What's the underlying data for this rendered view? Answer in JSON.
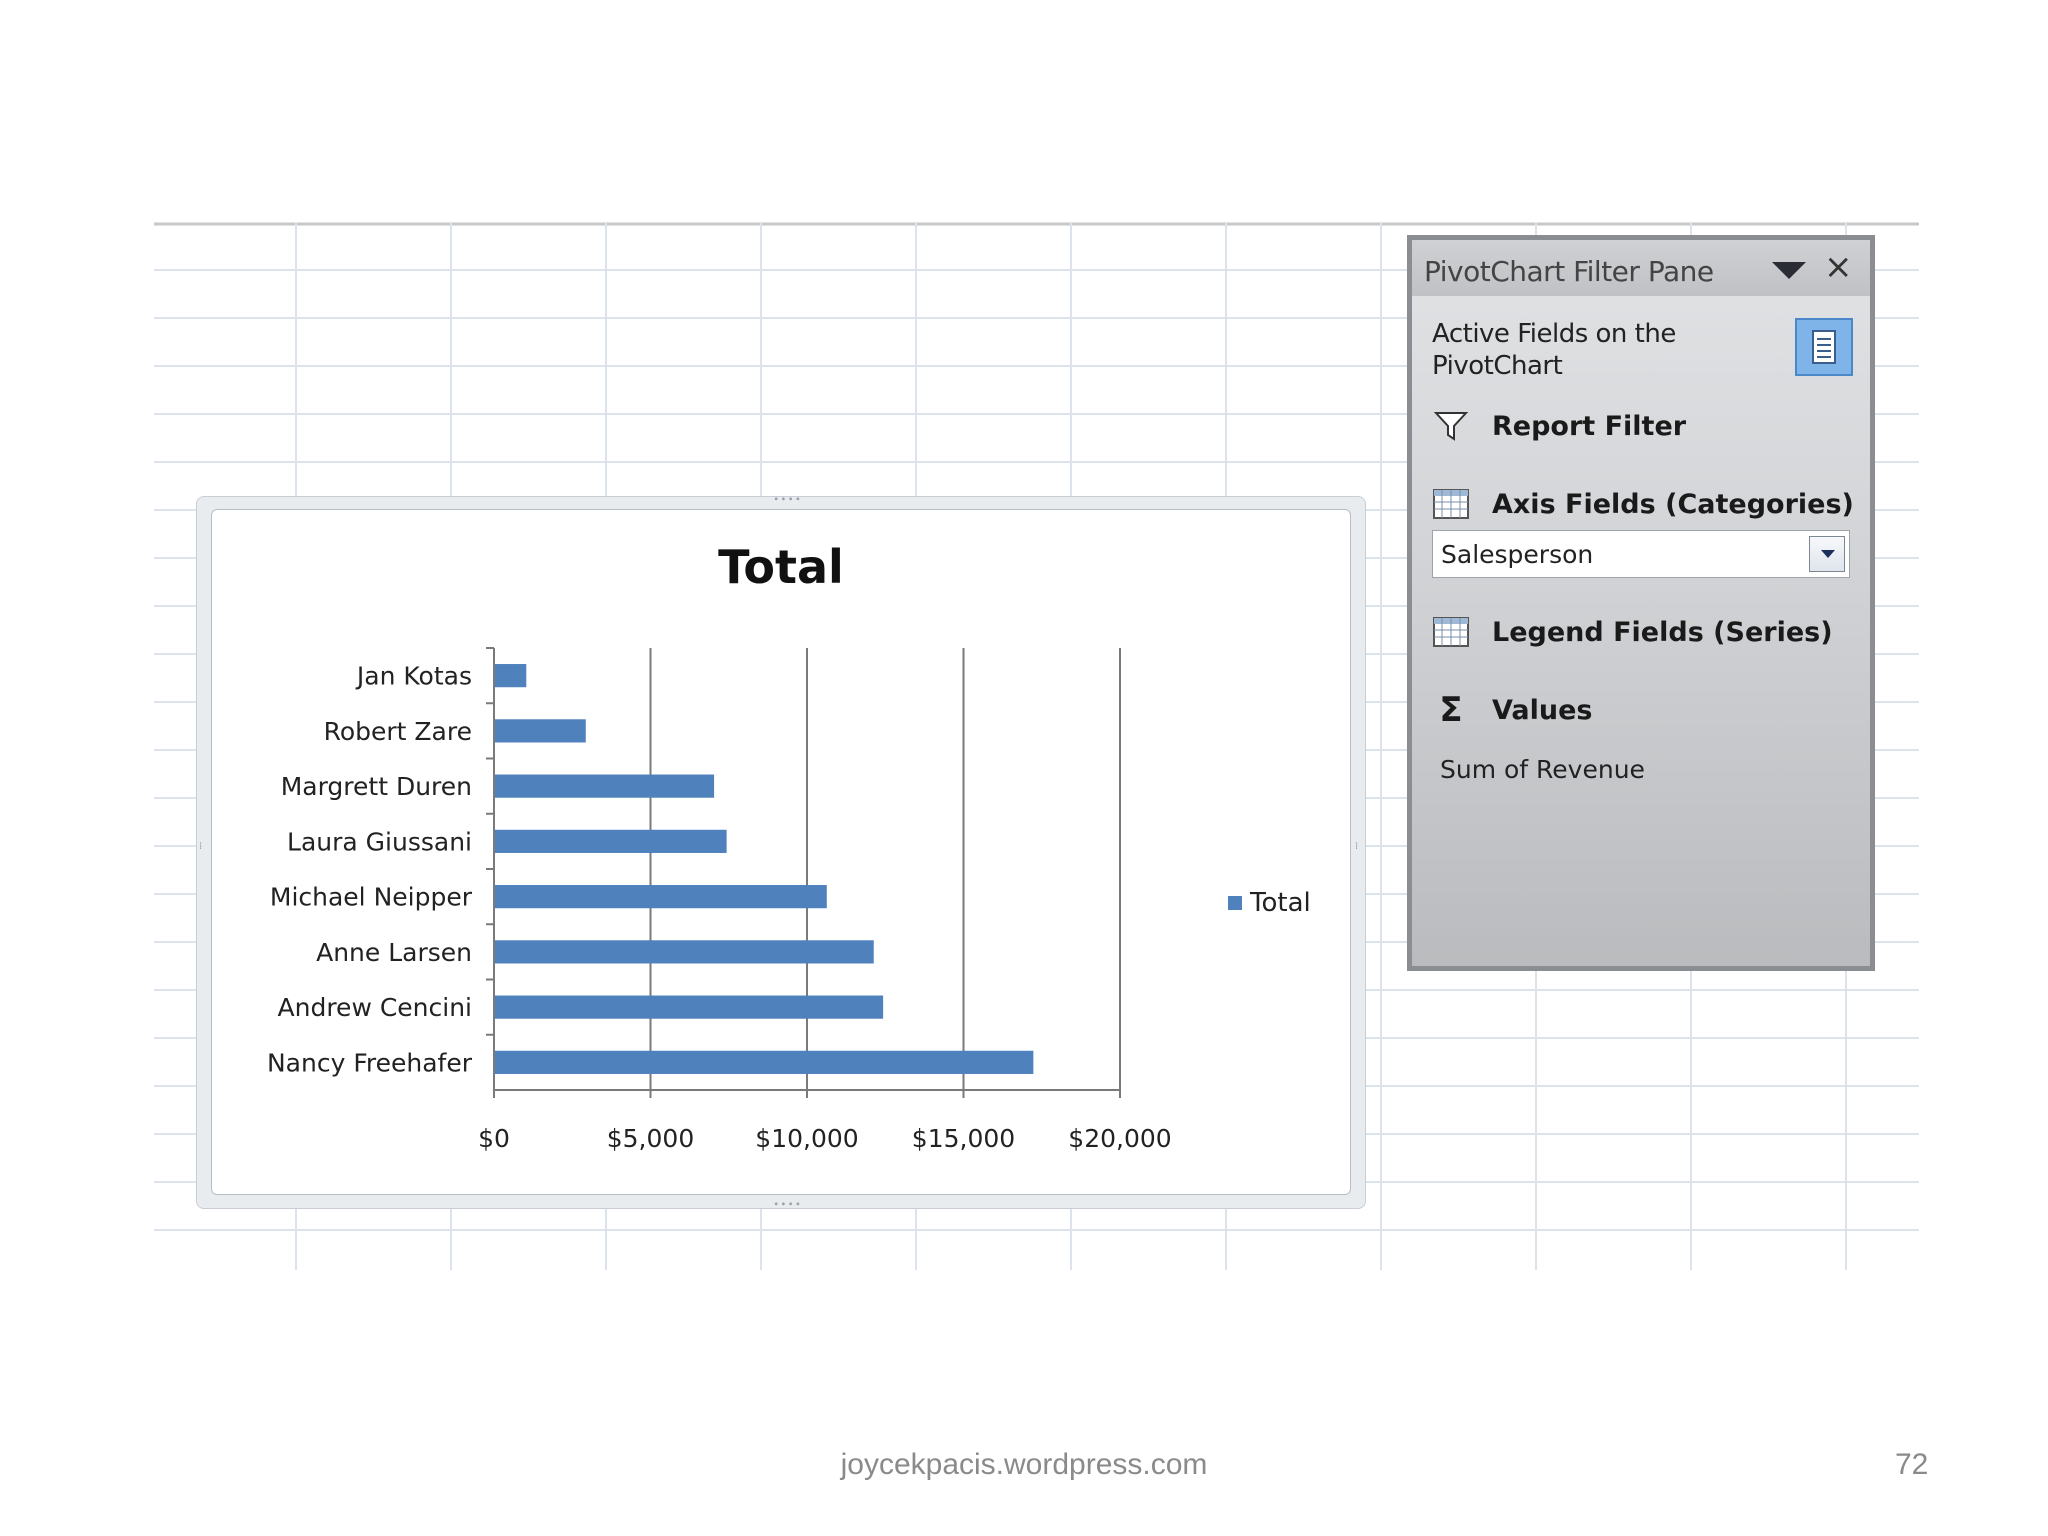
{
  "chart_data": {
    "type": "bar",
    "orientation": "horizontal",
    "title": "Total",
    "categories": [
      "Jan Kotas",
      "Robert Zare",
      "Margrett Duren",
      "Laura Giussani",
      "Michael Neipper",
      "Anne Larsen",
      "Andrew Cencini",
      "Nancy Freehafer"
    ],
    "series": [
      {
        "name": "Total",
        "values": [
          1000,
          2900,
          7000,
          7400,
          10600,
          12100,
          12400,
          17200
        ],
        "color": "#4f81bd"
      }
    ],
    "xlim": [
      0,
      20000
    ],
    "tick_values": [
      0,
      5000,
      10000,
      15000,
      20000
    ],
    "tick_labels": [
      "$0",
      "$5,000",
      "$10,000",
      "$15,000",
      "$20,000"
    ],
    "grid": "vertical major gridlines",
    "legend": "right"
  },
  "filter_pane": {
    "title": "PivotChart Filter Pane",
    "description": "Active Fields on the PivotChart",
    "report_filter": "Report Filter",
    "axis_fields": "Axis Fields (Categories)",
    "axis_value": "Salesperson",
    "legend_fields": "Legend Fields (Series)",
    "values": "Values",
    "values_item": "Sum of Revenue"
  },
  "footer": {
    "source": "joycekpacis.wordpress.com",
    "page_number": "72"
  }
}
